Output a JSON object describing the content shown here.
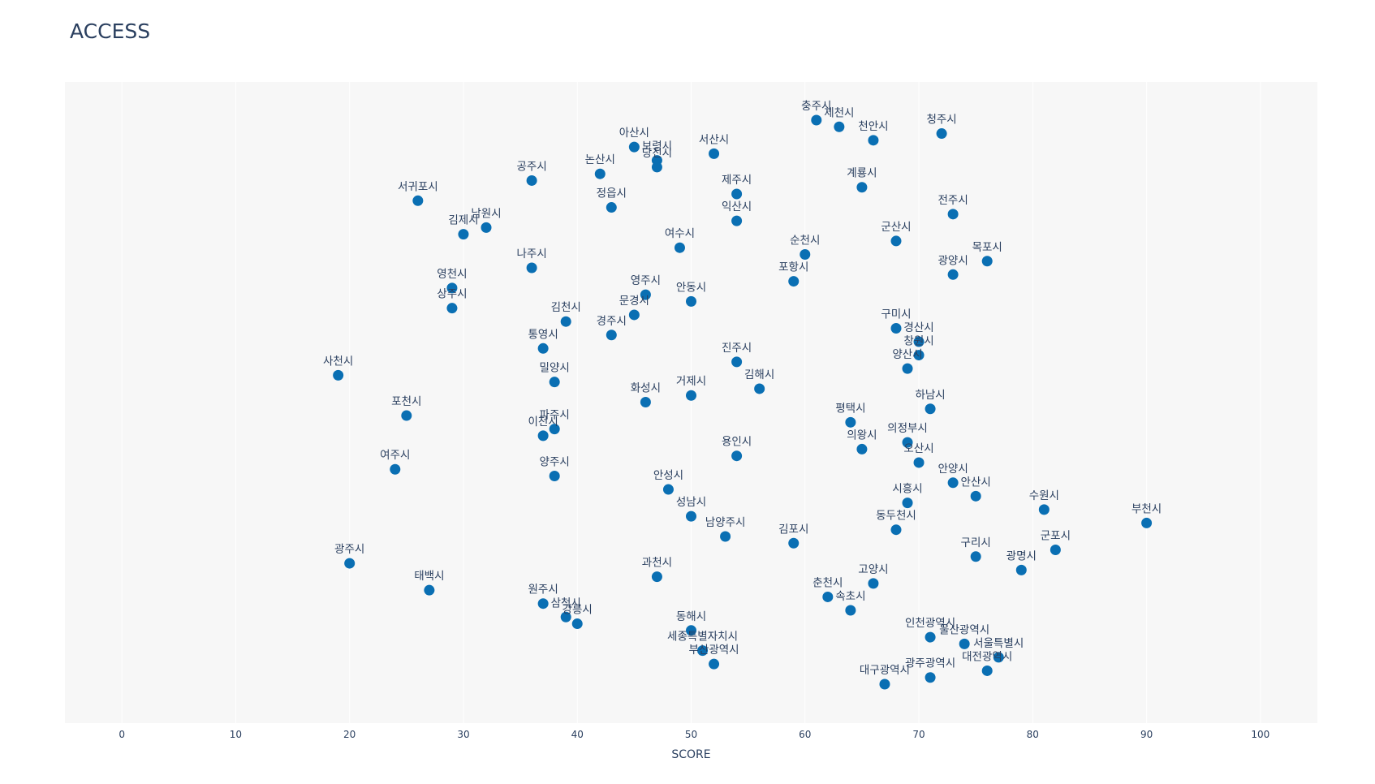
{
  "chart_data": {
    "type": "scatter",
    "title": "ACCESS",
    "xlabel": "SCORE",
    "ylabel": "",
    "xlim": [
      -5,
      105
    ],
    "x_ticks": [
      0,
      10,
      20,
      30,
      40,
      50,
      60,
      70,
      80,
      90,
      100
    ],
    "grid": true,
    "plot_background": "#f7f7f7",
    "marker_color": "#0a6fb3",
    "points": [
      {
        "label": "충주시",
        "x": 61,
        "rank": 1
      },
      {
        "label": "제천시",
        "x": 63,
        "rank": 2
      },
      {
        "label": "청주시",
        "x": 72,
        "rank": 3
      },
      {
        "label": "천안시",
        "x": 66,
        "rank": 4
      },
      {
        "label": "아산시",
        "x": 45,
        "rank": 5
      },
      {
        "label": "서산시",
        "x": 52,
        "rank": 6
      },
      {
        "label": "보령시",
        "x": 47,
        "rank": 7
      },
      {
        "label": "당진시",
        "x": 47,
        "rank": 8
      },
      {
        "label": "논산시",
        "x": 42,
        "rank": 9
      },
      {
        "label": "공주시",
        "x": 36,
        "rank": 10
      },
      {
        "label": "계룡시",
        "x": 65,
        "rank": 11
      },
      {
        "label": "제주시",
        "x": 54,
        "rank": 12
      },
      {
        "label": "서귀포시",
        "x": 26,
        "rank": 13
      },
      {
        "label": "정읍시",
        "x": 43,
        "rank": 14
      },
      {
        "label": "전주시",
        "x": 73,
        "rank": 15
      },
      {
        "label": "익산시",
        "x": 54,
        "rank": 16
      },
      {
        "label": "남원시",
        "x": 32,
        "rank": 17
      },
      {
        "label": "김제시",
        "x": 30,
        "rank": 18
      },
      {
        "label": "군산시",
        "x": 68,
        "rank": 19
      },
      {
        "label": "여수시",
        "x": 49,
        "rank": 20
      },
      {
        "label": "순천시",
        "x": 60,
        "rank": 21
      },
      {
        "label": "목포시",
        "x": 76,
        "rank": 22
      },
      {
        "label": "나주시",
        "x": 36,
        "rank": 23
      },
      {
        "label": "광양시",
        "x": 73,
        "rank": 24
      },
      {
        "label": "포항시",
        "x": 59,
        "rank": 25
      },
      {
        "label": "영천시",
        "x": 29,
        "rank": 26
      },
      {
        "label": "영주시",
        "x": 46,
        "rank": 27
      },
      {
        "label": "안동시",
        "x": 50,
        "rank": 28
      },
      {
        "label": "상주시",
        "x": 29,
        "rank": 29
      },
      {
        "label": "문경시",
        "x": 45,
        "rank": 30
      },
      {
        "label": "김천시",
        "x": 39,
        "rank": 31
      },
      {
        "label": "구미시",
        "x": 68,
        "rank": 32
      },
      {
        "label": "경주시",
        "x": 43,
        "rank": 33
      },
      {
        "label": "경산시",
        "x": 70,
        "rank": 34
      },
      {
        "label": "통영시",
        "x": 37,
        "rank": 35
      },
      {
        "label": "창원시",
        "x": 70,
        "rank": 36
      },
      {
        "label": "진주시",
        "x": 54,
        "rank": 37
      },
      {
        "label": "양산시",
        "x": 69,
        "rank": 38
      },
      {
        "label": "사천시",
        "x": 19,
        "rank": 39
      },
      {
        "label": "밀양시",
        "x": 38,
        "rank": 40
      },
      {
        "label": "김해시",
        "x": 56,
        "rank": 41
      },
      {
        "label": "거제시",
        "x": 50,
        "rank": 42
      },
      {
        "label": "화성시",
        "x": 46,
        "rank": 43
      },
      {
        "label": "하남시",
        "x": 71,
        "rank": 44
      },
      {
        "label": "포천시",
        "x": 25,
        "rank": 45
      },
      {
        "label": "평택시",
        "x": 64,
        "rank": 46
      },
      {
        "label": "파주시",
        "x": 38,
        "rank": 47
      },
      {
        "label": "이천시",
        "x": 37,
        "rank": 48
      },
      {
        "label": "의정부시",
        "x": 69,
        "rank": 49
      },
      {
        "label": "의왕시",
        "x": 65,
        "rank": 50
      },
      {
        "label": "용인시",
        "x": 54,
        "rank": 51
      },
      {
        "label": "오산시",
        "x": 70,
        "rank": 52
      },
      {
        "label": "여주시",
        "x": 24,
        "rank": 53
      },
      {
        "label": "양주시",
        "x": 38,
        "rank": 54
      },
      {
        "label": "안양시",
        "x": 73,
        "rank": 55
      },
      {
        "label": "안성시",
        "x": 48,
        "rank": 56
      },
      {
        "label": "안산시",
        "x": 75,
        "rank": 57
      },
      {
        "label": "시흥시",
        "x": 69,
        "rank": 58
      },
      {
        "label": "수원시",
        "x": 81,
        "rank": 59
      },
      {
        "label": "성남시",
        "x": 50,
        "rank": 60
      },
      {
        "label": "부천시",
        "x": 90,
        "rank": 61
      },
      {
        "label": "동두천시",
        "x": 68,
        "rank": 62
      },
      {
        "label": "남양주시",
        "x": 53,
        "rank": 63
      },
      {
        "label": "김포시",
        "x": 59,
        "rank": 64
      },
      {
        "label": "군포시",
        "x": 82,
        "rank": 65
      },
      {
        "label": "구리시",
        "x": 75,
        "rank": 66
      },
      {
        "label": "광주시",
        "x": 20,
        "rank": 67
      },
      {
        "label": "광명시",
        "x": 79,
        "rank": 68
      },
      {
        "label": "과천시",
        "x": 47,
        "rank": 69
      },
      {
        "label": "고양시",
        "x": 66,
        "rank": 70
      },
      {
        "label": "태백시",
        "x": 27,
        "rank": 71
      },
      {
        "label": "춘천시",
        "x": 62,
        "rank": 72
      },
      {
        "label": "원주시",
        "x": 37,
        "rank": 73
      },
      {
        "label": "속초시",
        "x": 64,
        "rank": 74
      },
      {
        "label": "삼척시",
        "x": 39,
        "rank": 75
      },
      {
        "label": "강릉시",
        "x": 40,
        "rank": 76
      },
      {
        "label": "동해시",
        "x": 50,
        "rank": 77
      },
      {
        "label": "인천광역시",
        "x": 71,
        "rank": 78
      },
      {
        "label": "울산광역시",
        "x": 74,
        "rank": 79
      },
      {
        "label": "세종특별자치시",
        "x": 51,
        "rank": 80
      },
      {
        "label": "서울특별시",
        "x": 77,
        "rank": 81
      },
      {
        "label": "부산광역시",
        "x": 52,
        "rank": 82
      },
      {
        "label": "대전광역시",
        "x": 76,
        "rank": 83
      },
      {
        "label": "광주광역시",
        "x": 71,
        "rank": 84
      },
      {
        "label": "대구광역시",
        "x": 67,
        "rank": 85
      }
    ]
  }
}
